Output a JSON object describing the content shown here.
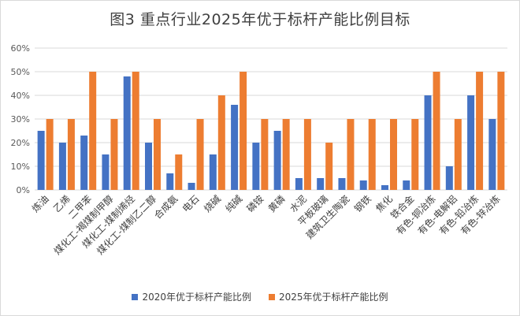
{
  "chart_data": {
    "type": "bar",
    "title": "图3  重点行业2025年优于标杆产能比例目标",
    "xlabel": "",
    "ylabel": "",
    "ylim": [
      0,
      60
    ],
    "yticks": [
      "0%",
      "10%",
      "20%",
      "30%",
      "40%",
      "50%",
      "60%"
    ],
    "grid": true,
    "legend_position": "bottom",
    "categories": [
      "炼油",
      "乙烯",
      "二甲苯",
      "煤化工-褐煤制甲醇",
      "煤化工-煤制烯烃",
      "煤化工-煤制乙二醇",
      "合成氨",
      "电石",
      "烧碱",
      "纯碱",
      "磷铵",
      "黄磷",
      "水泥",
      "平板玻璃",
      "建筑卫生陶瓷",
      "钢铁",
      "焦化",
      "铁合金",
      "有色-铜冶炼",
      "有色-电解铝",
      "有色-铅冶炼",
      "有色-锌冶炼"
    ],
    "series": [
      {
        "name": "2020年优于标杆产能比例",
        "color": "#4472c4",
        "values": [
          25,
          20,
          23,
          15,
          48,
          20,
          7,
          3,
          15,
          36,
          20,
          25,
          5,
          5,
          5,
          4,
          2,
          4,
          40,
          10,
          40,
          30
        ]
      },
      {
        "name": "2025年优于标杆产能比例",
        "color": "#ed7d31",
        "values": [
          30,
          30,
          50,
          30,
          50,
          30,
          15,
          30,
          40,
          50,
          30,
          30,
          30,
          20,
          30,
          30,
          30,
          30,
          50,
          30,
          50,
          50
        ]
      }
    ]
  }
}
